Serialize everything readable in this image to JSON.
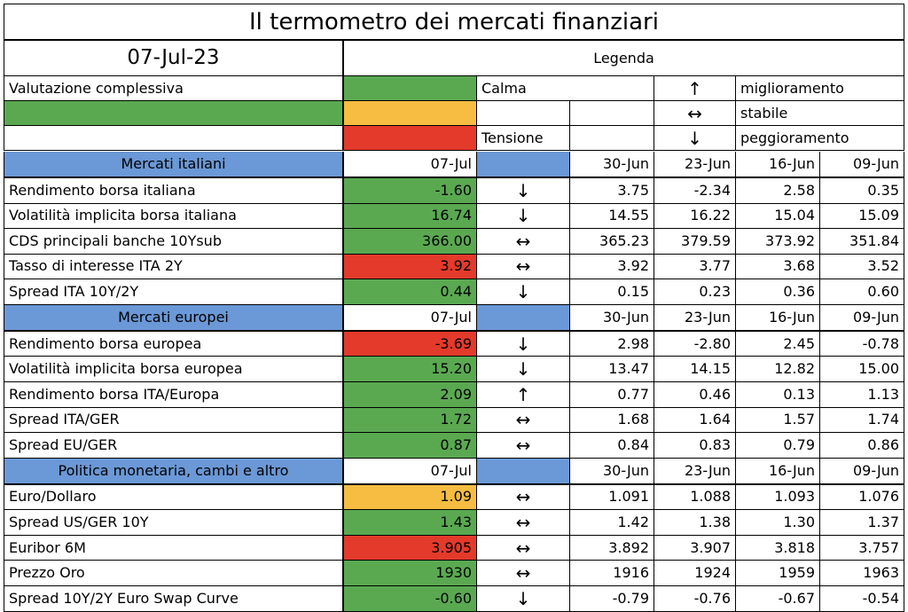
{
  "title": "Il termometro dei mercati finanziari",
  "date": "07-Jul-23",
  "legend": {
    "heading": "Legenda",
    "overall_label": "Valutazione complessiva",
    "overall_color": "#5aa951",
    "calma_label": "Calma",
    "tensione_label": "Tensione",
    "scale_colors": [
      "#5aa951",
      "#f6bd42",
      "#e33a2b"
    ],
    "arrows": [
      {
        "symbol": "↑",
        "icon": "arrow-up-icon",
        "label": "miglioramento"
      },
      {
        "symbol": "↔",
        "icon": "arrow-left-right-icon",
        "label": "stabile"
      },
      {
        "symbol": "↓",
        "icon": "arrow-down-icon",
        "label": "peggioramento"
      }
    ]
  },
  "colors": {
    "green": "#5aa951",
    "yellow": "#f6bd42",
    "red": "#e33a2b",
    "header_blue": "#6b98d6"
  },
  "sections": [
    {
      "name": "Mercati italiani",
      "cols": [
        "07-Jul",
        "30-Jun",
        "23-Jun",
        "16-Jun",
        "09-Jun"
      ],
      "rows": [
        {
          "label": "Rendimento borsa italiana",
          "value": "-1.60",
          "status": "green",
          "trend": "↓",
          "trend_icon": "arrow-down-icon",
          "history": [
            "3.75",
            "-2.34",
            "2.58",
            "0.35"
          ]
        },
        {
          "label": "Volatilità implicita borsa italiana",
          "value": "16.74",
          "status": "green",
          "trend": "↓",
          "trend_icon": "arrow-down-icon",
          "history": [
            "14.55",
            "16.22",
            "15.04",
            "15.09"
          ]
        },
        {
          "label": "CDS principali banche 10Ysub",
          "value": "366.00",
          "status": "green",
          "trend": "↔",
          "trend_icon": "arrow-left-right-icon",
          "history": [
            "365.23",
            "379.59",
            "373.92",
            "351.84"
          ]
        },
        {
          "label": "Tasso di interesse ITA 2Y",
          "value": "3.92",
          "status": "red",
          "trend": "↔",
          "trend_icon": "arrow-left-right-icon",
          "history": [
            "3.92",
            "3.77",
            "3.68",
            "3.52"
          ]
        },
        {
          "label": "Spread ITA 10Y/2Y",
          "value": "0.44",
          "status": "green",
          "trend": "↓",
          "trend_icon": "arrow-down-icon",
          "history": [
            "0.15",
            "0.23",
            "0.36",
            "0.60"
          ]
        }
      ]
    },
    {
      "name": "Mercati europei",
      "cols": [
        "07-Jul",
        "30-Jun",
        "23-Jun",
        "16-Jun",
        "09-Jun"
      ],
      "rows": [
        {
          "label": "Rendimento borsa europea",
          "value": "-3.69",
          "status": "red",
          "trend": "↓",
          "trend_icon": "arrow-down-icon",
          "history": [
            "2.98",
            "-2.80",
            "2.45",
            "-0.78"
          ]
        },
        {
          "label": "Volatilità implicita borsa europea",
          "value": "15.20",
          "status": "green",
          "trend": "↓",
          "trend_icon": "arrow-down-icon",
          "history": [
            "13.47",
            "14.15",
            "12.82",
            "15.00"
          ]
        },
        {
          "label": "Rendimento borsa ITA/Europa",
          "value": "2.09",
          "status": "green",
          "trend": "↑",
          "trend_icon": "arrow-up-icon",
          "history": [
            "0.77",
            "0.46",
            "0.13",
            "1.13"
          ]
        },
        {
          "label": "Spread ITA/GER",
          "value": "1.72",
          "status": "green",
          "trend": "↔",
          "trend_icon": "arrow-left-right-icon",
          "history": [
            "1.68",
            "1.64",
            "1.57",
            "1.74"
          ]
        },
        {
          "label": "Spread EU/GER",
          "value": "0.87",
          "status": "green",
          "trend": "↔",
          "trend_icon": "arrow-left-right-icon",
          "history": [
            "0.84",
            "0.83",
            "0.79",
            "0.86"
          ]
        }
      ]
    },
    {
      "name": "Politica monetaria, cambi e altro",
      "cols": [
        "07-Jul",
        "30-Jun",
        "23-Jun",
        "16-Jun",
        "09-Jun"
      ],
      "rows": [
        {
          "label": "Euro/Dollaro",
          "value": "1.09",
          "status": "yellow",
          "trend": "↔",
          "trend_icon": "arrow-left-right-icon",
          "history": [
            "1.091",
            "1.088",
            "1.093",
            "1.076"
          ]
        },
        {
          "label": "Spread US/GER 10Y",
          "value": "1.43",
          "status": "green",
          "trend": "↔",
          "trend_icon": "arrow-left-right-icon",
          "history": [
            "1.42",
            "1.38",
            "1.30",
            "1.37"
          ]
        },
        {
          "label": "Euribor 6M",
          "value": "3.905",
          "status": "red",
          "trend": "↔",
          "trend_icon": "arrow-left-right-icon",
          "history": [
            "3.892",
            "3.907",
            "3.818",
            "3.757"
          ]
        },
        {
          "label": "Prezzo Oro",
          "value": "1930",
          "status": "green",
          "trend": "↔",
          "trend_icon": "arrow-left-right-icon",
          "history": [
            "1916",
            "1924",
            "1959",
            "1963"
          ]
        },
        {
          "label": "Spread 10Y/2Y Euro Swap Curve",
          "value": "-0.60",
          "status": "green",
          "trend": "↓",
          "trend_icon": "arrow-down-icon",
          "history": [
            "-0.79",
            "-0.76",
            "-0.67",
            "-0.54"
          ]
        }
      ]
    }
  ]
}
